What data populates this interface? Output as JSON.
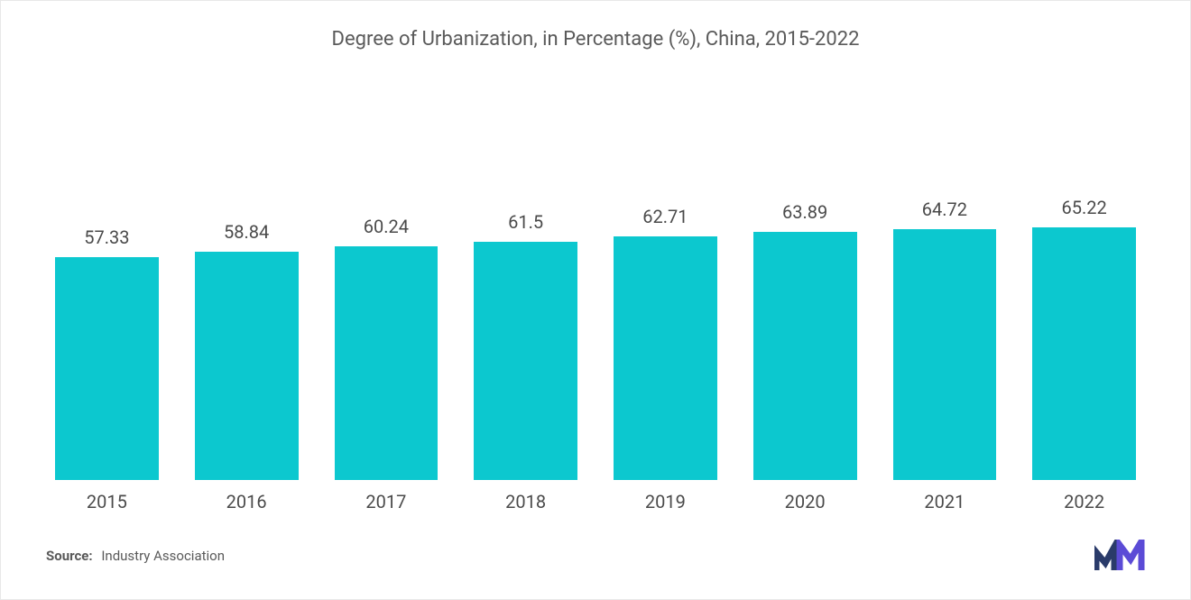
{
  "chart": {
    "type": "bar",
    "title": "Degree of Urbanization, in Percentage (%), China, 2015-2022",
    "title_fontsize": 22,
    "title_color": "#5a5a5a",
    "categories": [
      "2015",
      "2016",
      "2017",
      "2018",
      "2019",
      "2020",
      "2021",
      "2022"
    ],
    "values": [
      57.33,
      58.84,
      60.24,
      61.5,
      62.71,
      63.89,
      64.72,
      65.22
    ],
    "value_labels": [
      "57.33",
      "58.84",
      "60.24",
      "61.5",
      "62.71",
      "63.89",
      "64.72",
      "65.22"
    ],
    "bar_color": "#0cc8cf",
    "value_label_color": "#4a4a4a",
    "value_label_fontsize": 20,
    "category_label_color": "#4a4a4a",
    "category_label_fontsize": 20,
    "background_color": "#ffffff",
    "ylim": [
      0,
      70
    ],
    "bar_height_scale": 4.3,
    "bar_max_width": 115,
    "bar_gap": 40
  },
  "footer": {
    "source_label": "Source:",
    "source_text": "Industry Association",
    "logo_colors": {
      "dark": "#2a3b6a",
      "accent": "#5b4bd6"
    }
  }
}
